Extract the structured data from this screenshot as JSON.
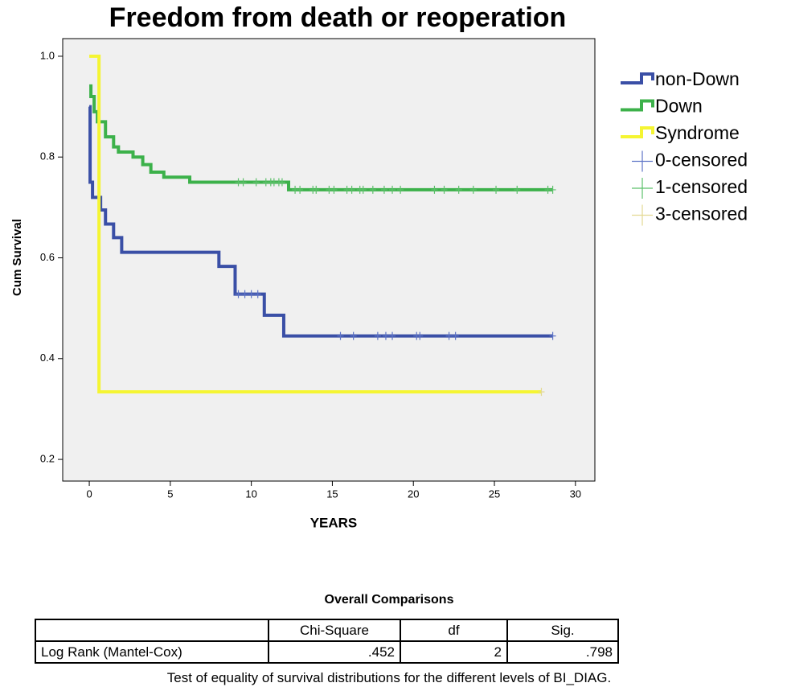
{
  "chart_data": {
    "type": "km",
    "title": "Freedom from death or reoperation",
    "xlabel": "YEARS",
    "ylabel": "Cum Survival",
    "xlim": [
      -1.64,
      31.2
    ],
    "ylim": [
      0.157,
      1.035
    ],
    "xticks": [
      0,
      5,
      10,
      15,
      20,
      25,
      30
    ],
    "yticks": [
      0.2,
      0.4,
      0.6,
      0.8,
      {
        "value": 1,
        "label": "1.0"
      }
    ],
    "background": "#f0f0f0",
    "series": [
      {
        "name": "non-Down",
        "color": "#3a4fa6",
        "style": "step",
        "x": [
          0,
          0.05,
          0.2,
          0.7,
          1.0,
          1.5,
          2.0,
          8.0,
          9.0,
          10.8,
          12.0,
          28.6
        ],
        "values": [
          0.9,
          0.75,
          0.72,
          0.695,
          0.667,
          0.64,
          0.611,
          0.583,
          0.528,
          0.486,
          0.445,
          0.445
        ]
      },
      {
        "name": "Down",
        "color": "#3cb14a",
        "style": "step",
        "x": [
          0,
          0.1,
          0.3,
          0.5,
          1.0,
          1.5,
          1.8,
          2.7,
          3.3,
          3.8,
          4.6,
          6.2,
          12.3,
          28.6
        ],
        "values": [
          0.941,
          0.92,
          0.89,
          0.87,
          0.84,
          0.82,
          0.81,
          0.8,
          0.785,
          0.77,
          0.76,
          0.75,
          0.735,
          0.735
        ]
      },
      {
        "name": "Syndrome",
        "color": "#f5f532",
        "style": "step",
        "x": [
          0,
          0.6,
          27.9
        ],
        "values": [
          1,
          0.334,
          0.334
        ]
      },
      {
        "name": "0-censored",
        "color": "#5d73c6",
        "style": "censor",
        "x": [
          9.2,
          9.6,
          10.0,
          10.4,
          15.5,
          16.3,
          17.8,
          18.3,
          18.7,
          20.2,
          20.4,
          22.2,
          22.6,
          28.6
        ],
        "values": [
          0.528,
          0.528,
          0.528,
          0.528,
          0.445,
          0.445,
          0.445,
          0.445,
          0.445,
          0.445,
          0.445,
          0.445,
          0.445,
          0.445
        ]
      },
      {
        "name": "1-censored",
        "color": "#5cc06a",
        "style": "censor",
        "x": [
          9.2,
          9.5,
          10.3,
          10.9,
          11.2,
          11.4,
          11.7,
          11.9,
          12.7,
          13.0,
          13.8,
          14.0,
          14.8,
          15.1,
          15.9,
          16.2,
          16.7,
          16.9,
          17.5,
          18.2,
          18.7,
          19.2,
          21.3,
          21.9,
          22.8,
          23.7,
          25.1,
          26.4,
          28.3,
          28.6
        ],
        "values": [
          0.75,
          0.75,
          0.75,
          0.75,
          0.75,
          0.75,
          0.75,
          0.75,
          0.735,
          0.735,
          0.735,
          0.735,
          0.735,
          0.735,
          0.735,
          0.735,
          0.735,
          0.735,
          0.735,
          0.735,
          0.735,
          0.735,
          0.735,
          0.735,
          0.735,
          0.735,
          0.735,
          0.735,
          0.735,
          0.735
        ]
      },
      {
        "name": "3-censored",
        "color": "#e3d992",
        "style": "censor",
        "x": [
          27.9
        ],
        "values": [
          0.334
        ]
      }
    ]
  },
  "table": {
    "title": "Overall Comparisons",
    "columns": [
      "Chi-Square",
      "df",
      "Sig."
    ],
    "rows": [
      {
        "label": "Log Rank (Mantel-Cox)",
        "cells": [
          ".452",
          "2",
          ".798"
        ]
      }
    ],
    "footnote": "Test of equality of survival distributions for the different levels of BI_DIAG."
  }
}
